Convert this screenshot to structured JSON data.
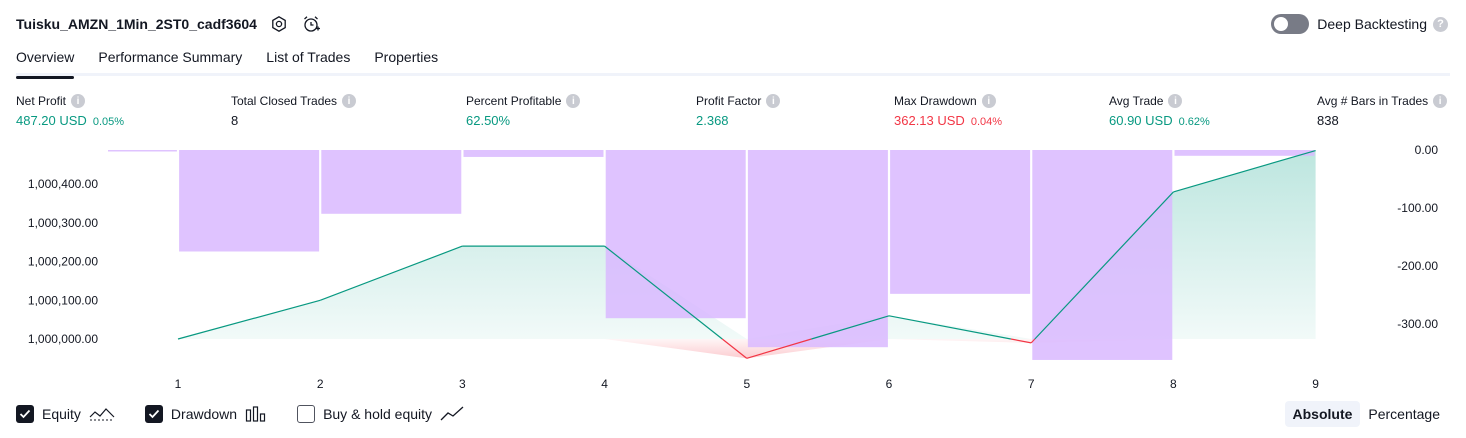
{
  "header": {
    "title": "Tuisku_AMZN_1Min_2ST0_cadf3604",
    "settings_icon": "gear-icon",
    "alert_icon": "alarm-add-icon"
  },
  "deep_backtesting": {
    "label": "Deep Backtesting",
    "enabled": false,
    "help": "?"
  },
  "tabs": [
    {
      "label": "Overview",
      "active": true
    },
    {
      "label": "Performance Summary",
      "active": false
    },
    {
      "label": "List of Trades",
      "active": false
    },
    {
      "label": "Properties",
      "active": false
    }
  ],
  "metrics": {
    "net_profit": {
      "label": "Net Profit",
      "value": "487.20 USD",
      "pct": "0.05%"
    },
    "total_closed_trades": {
      "label": "Total Closed Trades",
      "value": "8"
    },
    "percent_profitable": {
      "label": "Percent Profitable",
      "value": "62.50%"
    },
    "profit_factor": {
      "label": "Profit Factor",
      "value": "2.368"
    },
    "max_drawdown": {
      "label": "Max Drawdown",
      "value": "362.13 USD",
      "pct": "0.04%"
    },
    "avg_trade": {
      "label": "Avg Trade",
      "value": "60.90 USD",
      "pct": "0.62%"
    },
    "avg_bars": {
      "label": "Avg # Bars in Trades",
      "value": "838"
    }
  },
  "chart_data": {
    "type": "line",
    "x": [
      "1",
      "2",
      "3",
      "4",
      "5",
      "6",
      "7",
      "8",
      "9"
    ],
    "equity": [
      1000000,
      1000100,
      1000240,
      1000240,
      999950,
      1000060,
      999990,
      1000380,
      1000487
    ],
    "drawdown": [
      0,
      -175,
      -110,
      -12,
      -290,
      -340,
      -248,
      -362,
      -10
    ],
    "left_ticks": [
      "1,000,000.00",
      "1,000,100.00",
      "1,000,200.00",
      "1,000,300.00",
      "1,000,400.00"
    ],
    "left_tick_values": [
      1000000,
      1000100,
      1000200,
      1000300,
      1000400
    ],
    "right_ticks": [
      "0.00",
      "-100.00",
      "-200.00",
      "-300.00"
    ],
    "right_tick_values": [
      0,
      -100,
      -200,
      -300
    ],
    "colors": {
      "equity_line": "#089981",
      "equity_fill": "#22ab94",
      "loss_line": "#f23645",
      "drawdown_bar": "#d9b8ff"
    }
  },
  "legend": {
    "equity": {
      "label": "Equity",
      "checked": true,
      "icon": "equity-line-icon"
    },
    "drawdown": {
      "label": "Drawdown",
      "checked": true,
      "icon": "bars-icon"
    },
    "buy_hold": {
      "label": "Buy & hold equity",
      "checked": false,
      "icon": "trend-line-icon"
    }
  },
  "mode": {
    "absolute": "Absolute",
    "percentage": "Percentage",
    "selected": "Absolute"
  }
}
